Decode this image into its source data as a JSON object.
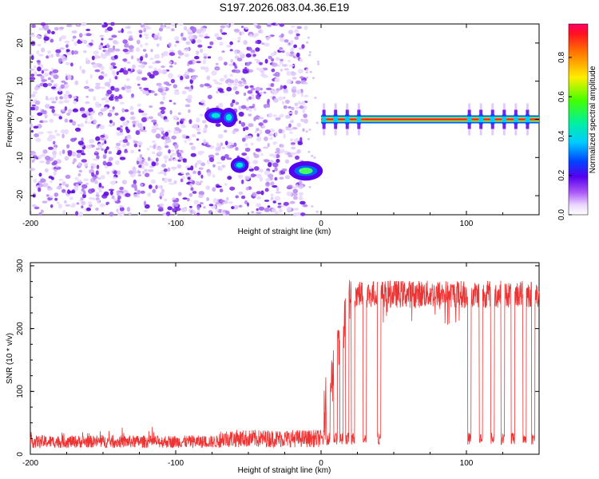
{
  "title": "S197.2026.083.04.36.E19",
  "chart_data": [
    {
      "type": "heatmap",
      "name": "spectrogram",
      "xlabel": "Height of straight line (km)",
      "ylabel": "Frequency (Hz)",
      "xlim": [
        -200,
        150
      ],
      "ylim": [
        -25,
        25
      ],
      "xticks": [
        -200,
        -100,
        0,
        100
      ],
      "yticks": [
        -20,
        -10,
        0,
        10,
        20
      ],
      "regions": [
        {
          "label": "scattered noise",
          "x": [
            -200,
            -10
          ],
          "y": [
            -25,
            25
          ]
        },
        {
          "label": "blob",
          "x": [
            -78,
            -67
          ],
          "y": [
            0,
            2
          ],
          "level": 0.25
        },
        {
          "label": "blob",
          "x": [
            -67,
            -60
          ],
          "y": [
            -1,
            2
          ],
          "level": 0.25
        },
        {
          "label": "blob",
          "x": [
            -60,
            -52
          ],
          "y": [
            -13,
            -11
          ],
          "level": 0.22
        },
        {
          "label": "blob",
          "x": [
            -20,
            -1
          ],
          "y": [
            -15,
            -12
          ],
          "level": 0.35
        },
        {
          "label": "carrier",
          "x": [
            0,
            150
          ],
          "y": [
            0,
            0
          ],
          "level": 0.95
        }
      ],
      "colorbar": {
        "label": "Normalized spectral amplitude",
        "ticks": [
          0.0,
          0.2,
          0.4,
          0.6,
          0.8
        ],
        "range": [
          0,
          0.97
        ]
      }
    },
    {
      "type": "line",
      "name": "snr",
      "xlabel": "Height of straight line (km)",
      "ylabel": "SNR (10 * v/v)",
      "xlim": [
        -200,
        150
      ],
      "ylim": [
        0,
        305
      ],
      "xticks": [
        -200,
        -100,
        0,
        100
      ],
      "yticks": [
        0,
        100,
        200,
        300
      ],
      "color": "#ee3333",
      "segments": [
        {
          "x": [
            -200,
            -70
          ],
          "mean": 20,
          "spread": 10
        },
        {
          "x": [
            -70,
            2
          ],
          "mean": 25,
          "spread": 14
        },
        {
          "x": [
            2,
            20
          ],
          "mean": 190,
          "spread": 50
        },
        {
          "x": [
            20,
            150
          ],
          "mean": 255,
          "spread": 22
        }
      ],
      "dropouts": [
        5,
        10,
        14,
        18,
        22,
        30,
        40,
        102,
        110,
        118,
        125,
        132,
        140,
        146
      ]
    }
  ]
}
